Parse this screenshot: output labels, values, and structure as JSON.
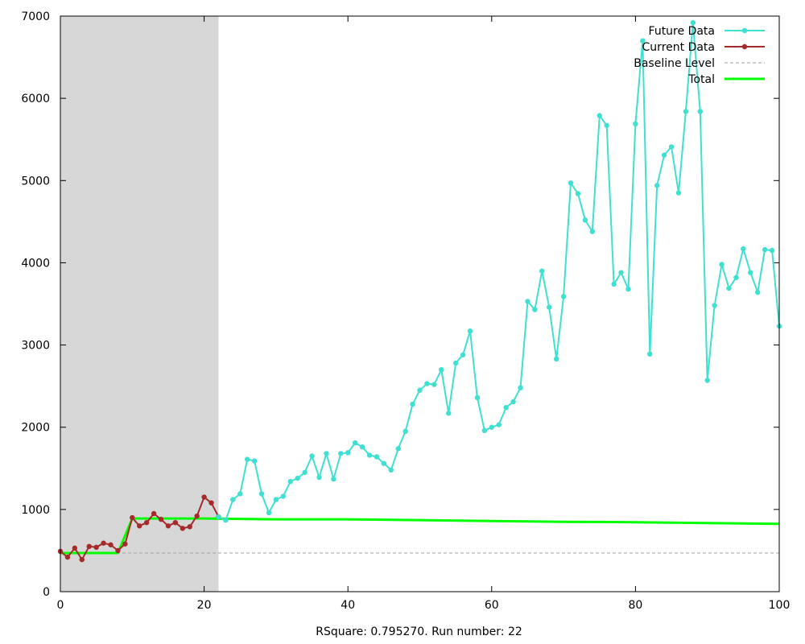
{
  "chart_data": {
    "type": "line",
    "xlim": [
      0,
      100
    ],
    "ylim": [
      0,
      7000
    ],
    "x_ticks": [
      0,
      20,
      40,
      60,
      80,
      100
    ],
    "y_ticks": [
      0,
      1000,
      2000,
      3000,
      4000,
      5000,
      6000,
      7000
    ],
    "xlabel": "RSquare: 0.795270. Run number: 22",
    "shaded_region": {
      "x_start": 0,
      "x_end": 22,
      "color": "#d7d7d7"
    },
    "legend_position": "top-right",
    "series": [
      {
        "name": "Future Data",
        "color": "#40e0d0",
        "marker": "circle",
        "x": [
          22,
          23,
          24,
          25,
          26,
          27,
          28,
          29,
          30,
          31,
          32,
          33,
          34,
          35,
          36,
          37,
          38,
          39,
          40,
          41,
          42,
          43,
          44,
          45,
          46,
          47,
          48,
          49,
          50,
          51,
          52,
          53,
          54,
          55,
          56,
          57,
          58,
          59,
          60,
          61,
          62,
          63,
          64,
          65,
          66,
          67,
          68,
          69,
          70,
          71,
          72,
          73,
          74,
          75,
          76,
          77,
          78,
          79,
          80,
          81,
          82,
          83,
          84,
          85,
          86,
          87,
          88,
          89,
          90,
          91,
          92,
          93,
          94,
          95,
          96,
          97,
          98,
          99,
          100
        ],
        "y": [
          910,
          870,
          1120,
          1190,
          1610,
          1590,
          1190,
          960,
          1120,
          1160,
          1340,
          1380,
          1450,
          1650,
          1390,
          1680,
          1370,
          1680,
          1690,
          1810,
          1760,
          1660,
          1640,
          1560,
          1480,
          1740,
          1950,
          2280,
          2450,
          2530,
          2520,
          2700,
          2170,
          2780,
          2880,
          3170,
          2360,
          1960,
          2000,
          2030,
          2240,
          2310,
          2480,
          3530,
          3430,
          3900,
          3460,
          2830,
          3590,
          4970,
          4840,
          4520,
          4380,
          5790,
          5670,
          3740,
          3880,
          3680,
          5690,
          6700,
          2890,
          4940,
          5310,
          5410,
          4850,
          5840,
          6920,
          5840,
          2570,
          3480,
          3980,
          3690,
          3820,
          4170,
          3880,
          3640,
          4160,
          4150,
          3230
        ]
      },
      {
        "name": "Current Data",
        "color": "#a52a2a",
        "marker": "circle",
        "x": [
          0,
          1,
          2,
          3,
          4,
          5,
          6,
          7,
          8,
          9,
          10,
          11,
          12,
          13,
          14,
          15,
          16,
          17,
          18,
          19,
          20,
          21,
          22
        ],
        "y": [
          490,
          420,
          530,
          390,
          550,
          540,
          590,
          570,
          500,
          580,
          900,
          800,
          840,
          950,
          880,
          800,
          840,
          770,
          790,
          920,
          1150,
          1080,
          910
        ]
      },
      {
        "name": "Baseline Level",
        "color": "#a0a0a0",
        "style": "dashed",
        "x": [
          0,
          100
        ],
        "y": [
          470,
          470
        ]
      },
      {
        "name": "Total",
        "color": "#00ff00",
        "style": "thick",
        "x": [
          0,
          8,
          10,
          20,
          30,
          40,
          50,
          60,
          70,
          80,
          90,
          100
        ],
        "y": [
          470,
          470,
          890,
          890,
          880,
          880,
          870,
          860,
          850,
          845,
          835,
          825
        ]
      }
    ]
  }
}
